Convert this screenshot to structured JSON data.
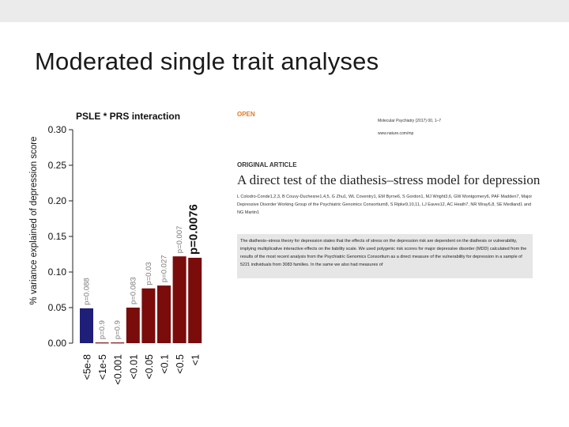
{
  "slide": {
    "title": "Moderated single trait analyses"
  },
  "chart_data": {
    "type": "bar",
    "title": "PSLE * PRS interaction",
    "ylabel": "% variance explained of depression score",
    "xlabel": "",
    "ylim": [
      0,
      0.3
    ],
    "yticks": [
      "0.00",
      "0.05",
      "0.10",
      "0.15",
      "0.20",
      "0.25",
      "0.30"
    ],
    "categories": [
      "<5e-8",
      "<1e-5",
      "<0.001",
      "<0.01",
      "<0.05",
      "<0.1",
      "<0.5",
      "<1"
    ],
    "values": [
      0.049,
      0.001,
      0.001,
      0.05,
      0.077,
      0.081,
      0.122,
      0.12
    ],
    "pvalues": [
      "p=0.088",
      "p=0.9",
      "p=0.9",
      "p=0.083",
      "p=0.03",
      "p=0.027",
      "p=0.007",
      "p=0.0076"
    ],
    "colors": [
      "#1f1f7a",
      "#7a0c0c",
      "#7a0c0c",
      "#7a0c0c",
      "#7a0c0c",
      "#7a0c0c",
      "#7a0c0c",
      "#7a0c0c"
    ],
    "grid": false
  },
  "paper": {
    "open_label": "OPEN",
    "journal": "Molecular Psychiatry (2017) 00, 1–7",
    "url": "www.nature.com/mp",
    "article_type": "ORIGINAL ARTICLE",
    "title": "A direct test of the diathesis–stress model for depression",
    "authors": "L Colodro-Conde1,2,3, B Couvy-Duchesne1,4,5, G Zhu1, WL Coventry1, EM Byrne6, S Gordon1, MJ Wright3,6, GW Montgomery6, PAF Madden7, Major Depressive Disorder Working Group of the Psychiatric Genomics Consortium8, S Ripke9,10,11, LJ Eaves12, AC Heath7, NR Wray6,8, SE Medland1 and NG Martin1",
    "abstract": "The diathesis–stress theory for depression states that the effects of stress on the depression risk are dependent on the diathesis or vulnerability, implying multiplicative interactive effects on the liability scale. We used polygenic risk scores for major depressive disorder (MDD) calculated from the results of the most recent analysis from the Psychiatric Genomics Consortium as a direct measure of the vulnerability for depression in a sample of 5221 individuals from 3083 families. In the same we also had measures of"
  }
}
